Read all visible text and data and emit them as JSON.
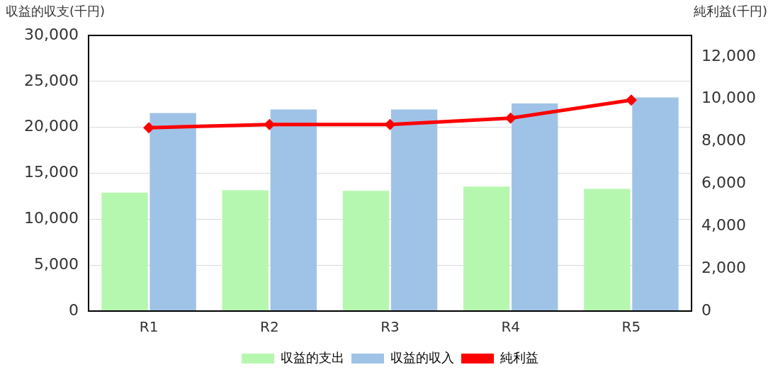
{
  "chart_data": {
    "type": "bar",
    "ylabel": "収益的収支(千円)",
    "y2label": "純利益(千円)",
    "categories": [
      "R1",
      "R2",
      "R3",
      "R4",
      "R5"
    ],
    "series": [
      {
        "name": "収益的支出",
        "color": "#b6f7b0",
        "values": [
          12900,
          13150,
          13100,
          13550,
          13300
        ]
      },
      {
        "name": "収益的収入",
        "color": "#9fc3e6",
        "values": [
          21550,
          21950,
          21950,
          22600,
          23250
        ]
      },
      {
        "name": "純利益",
        "type": "line",
        "axis": "y2",
        "color": "#ff0000",
        "marker": "diamond",
        "values": [
          8650,
          8800,
          8800,
          9100,
          9950
        ]
      }
    ],
    "ylim": [
      0,
      30000
    ],
    "yticks": [
      0,
      {
        "value": 5000,
        "label": "5,000"
      },
      {
        "value": 10000,
        "label": "10,000"
      },
      {
        "value": 15000,
        "label": "15,000"
      },
      {
        "value": 20000,
        "label": "20,000"
      },
      {
        "value": 25000,
        "label": "25,000"
      },
      {
        "value": 30000,
        "label": "30,000"
      }
    ],
    "y2lim": [
      0,
      13000
    ],
    "y2ticks": [
      0,
      {
        "value": 2000,
        "label": "2,000"
      },
      {
        "value": 4000,
        "label": "4,000"
      },
      {
        "value": 6000,
        "label": "6,000"
      },
      {
        "value": 8000,
        "label": "8,000"
      },
      {
        "value": 10000,
        "label": "10,000"
      },
      {
        "value": 12000,
        "label": "12,000"
      }
    ],
    "grid": "y",
    "legend": "bottom"
  }
}
